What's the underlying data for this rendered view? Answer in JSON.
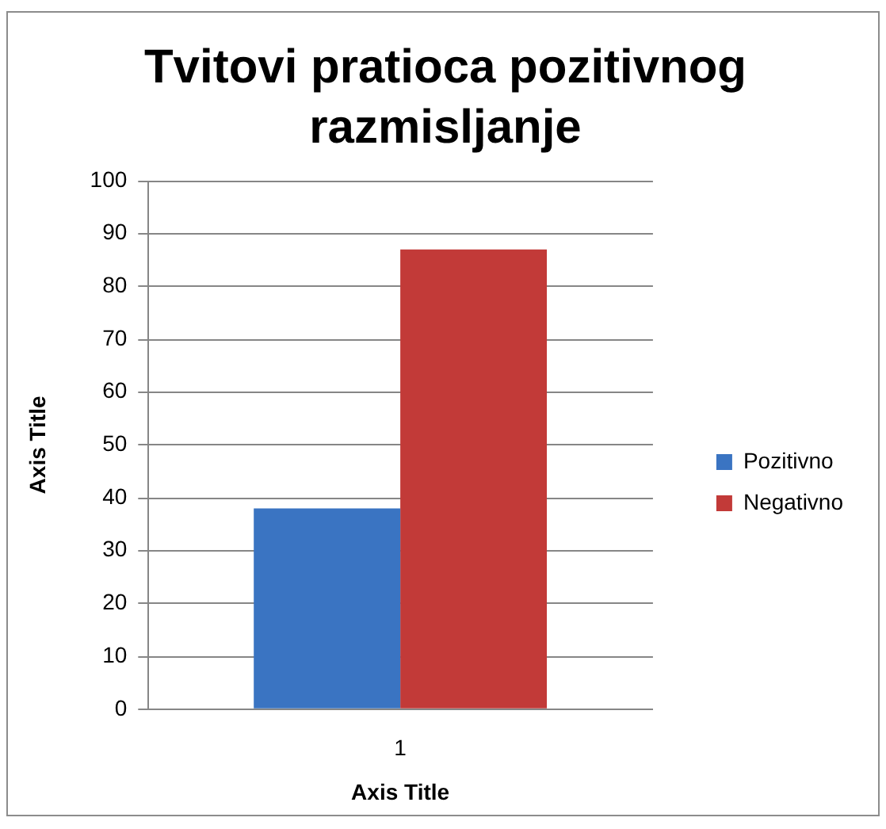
{
  "chart_data": {
    "type": "bar",
    "title": "Tvitovi pratioca pozitivnog razmisljanje",
    "xlabel": "Axis Title",
    "ylabel": "Axis Title",
    "categories": [
      "1"
    ],
    "series": [
      {
        "name": "Pozitivno",
        "color": "#3a74c2",
        "values": [
          38
        ]
      },
      {
        "name": "Negativno",
        "color": "#c23a38",
        "values": [
          87
        ]
      }
    ],
    "ylim": [
      0,
      100
    ],
    "yticks": [
      0,
      10,
      20,
      30,
      40,
      50,
      60,
      70,
      80,
      90,
      100
    ],
    "grid": "y",
    "legend": "right"
  }
}
